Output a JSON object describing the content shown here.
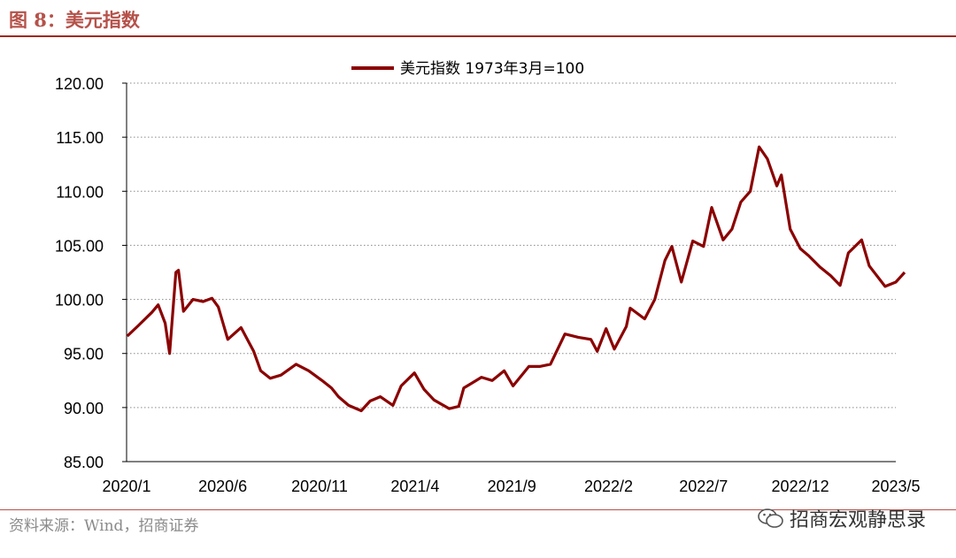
{
  "figure": {
    "title": "图 8：美元指数",
    "source": "资料来源：Wind，招商证券",
    "watermark": "招商宏观静思录",
    "watermark_icon": "wechat-icon"
  },
  "colors": {
    "series": "#8b0000",
    "accent": "#9e2a22",
    "title": "#b5524a",
    "grid": "#8a8a8a",
    "axis": "#000000"
  },
  "chart_data": {
    "type": "line",
    "title": "",
    "xlabel": "",
    "ylabel": "",
    "ylim": [
      85,
      120
    ],
    "yticks": [
      "85.00",
      "90.00",
      "95.00",
      "100.00",
      "105.00",
      "110.00",
      "115.00",
      "120.00"
    ],
    "xticks": [
      "2020/1",
      "2020/6",
      "2020/11",
      "2021/4",
      "2021/9",
      "2022/2",
      "2022/7",
      "2022/12",
      "2023/5"
    ],
    "grid": "horizontal dotted",
    "legend": "top-center",
    "series": [
      {
        "name": "美元指数 1973年3月=100",
        "x": [
          "2020/1/2",
          "2020/1/20",
          "2020/2/10",
          "2020/2/20",
          "2020/3/2",
          "2020/3/9",
          "2020/3/19",
          "2020/3/23",
          "2020/3/31",
          "2020/4/15",
          "2020/5/1",
          "2020/5/15",
          "2020/5/25",
          "2020/6/9",
          "2020/6/30",
          "2020/7/20",
          "2020/7/31",
          "2020/8/15",
          "2020/9/1",
          "2020/9/25",
          "2020/10/15",
          "2020/11/5",
          "2020/11/20",
          "2020/12/1",
          "2020/12/17",
          "2021/1/6",
          "2021/1/20",
          "2021/2/5",
          "2021/2/25",
          "2021/3/10",
          "2021/3/31",
          "2021/4/15",
          "2021/5/1",
          "2021/5/25",
          "2021/6/9",
          "2021/6/17",
          "2021/7/1",
          "2021/7/15",
          "2021/8/1",
          "2021/8/20",
          "2021/9/3",
          "2021/9/28",
          "2021/10/15",
          "2021/11/1",
          "2021/11/24",
          "2021/12/15",
          "2022/1/4",
          "2022/1/14",
          "2022/1/28",
          "2022/2/10",
          "2022/3/1",
          "2022/3/7",
          "2022/3/30",
          "2022/4/15",
          "2022/5/1",
          "2022/5/12",
          "2022/5/27",
          "2022/6/14",
          "2022/7/1",
          "2022/7/14",
          "2022/8/1",
          "2022/8/15",
          "2022/8/29",
          "2022/9/13",
          "2022/9/27",
          "2022/10/10",
          "2022/10/25",
          "2022/11/1",
          "2022/11/15",
          "2022/12/1",
          "2022/12/15",
          "2023/1/1",
          "2023/1/18",
          "2023/2/2",
          "2023/2/15",
          "2023/3/8",
          "2023/3/20",
          "2023/4/14",
          "2023/5/1",
          "2023/5/15"
        ],
        "values": [
          96.6,
          97.6,
          98.8,
          99.5,
          97.8,
          95.0,
          102.5,
          102.7,
          98.9,
          100.0,
          99.8,
          100.1,
          99.3,
          96.3,
          97.4,
          95.2,
          93.4,
          92.7,
          93.0,
          94.0,
          93.4,
          92.5,
          91.8,
          91.0,
          90.2,
          89.7,
          90.6,
          91.0,
          90.2,
          92.0,
          93.2,
          91.7,
          90.7,
          89.9,
          90.1,
          91.8,
          92.3,
          92.8,
          92.5,
          93.4,
          92.0,
          93.8,
          93.8,
          94.0,
          96.8,
          96.5,
          96.3,
          95.2,
          97.3,
          95.4,
          97.5,
          99.2,
          98.2,
          100.0,
          103.6,
          104.9,
          101.6,
          105.4,
          104.9,
          108.5,
          105.5,
          106.5,
          109.0,
          110.0,
          114.1,
          113.0,
          110.5,
          111.5,
          106.5,
          104.7,
          104.0,
          103.0,
          102.2,
          101.3,
          104.3,
          105.5,
          103.1,
          101.2,
          101.6,
          102.5
        ]
      }
    ]
  }
}
